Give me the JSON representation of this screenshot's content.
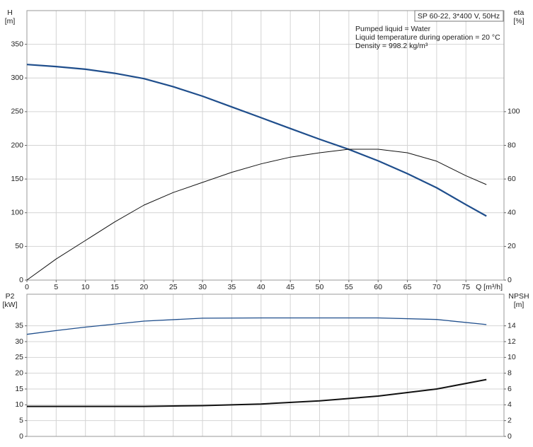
{
  "chart_data": [
    {
      "type": "line",
      "title": "SP 60-22, 3*400 V, 50Hz",
      "annotations": [
        "Pumped liquid = Water",
        "Liquid temperature during operation = 20 °C",
        "Density = 998.2 kg/m³"
      ],
      "ylabel": "H",
      "yunit": "[m]",
      "y2label": "eta",
      "y2unit": "[%]",
      "xlabel": "Q [m³/h]",
      "x": [
        0,
        5,
        10,
        15,
        20,
        25,
        30,
        35,
        40,
        45,
        50,
        55,
        60,
        65,
        70,
        75,
        78.5
      ],
      "xlim": [
        0,
        81.5
      ],
      "xticks": [
        0,
        5,
        10,
        15,
        20,
        25,
        30,
        35,
        40,
        45,
        50,
        55,
        60,
        65,
        70,
        75
      ],
      "ylim": [
        0,
        400
      ],
      "yticks": [
        0,
        50,
        100,
        150,
        200,
        250,
        300,
        350
      ],
      "y2lim": [
        0,
        160
      ],
      "y2ticks": [
        0,
        20,
        40,
        60,
        80,
        100
      ],
      "grid": true,
      "series": [
        {
          "color": "#1f4e8c",
          "values": [
            320,
            317,
            313,
            307,
            299,
            287,
            273,
            257,
            241,
            225,
            209,
            194,
            177,
            158,
            137,
            112,
            95
          ]
        },
        {
          "color": "#111111",
          "axis": "y2",
          "values": [
            0,
            12.5,
            23.5,
            34.5,
            44.5,
            52,
            58,
            64,
            69,
            73,
            75.6,
            77.7,
            77.7,
            75.6,
            70.6,
            62,
            56.7
          ]
        }
      ]
    },
    {
      "type": "line",
      "ylabel": "P2",
      "yunit": "[kW]",
      "y2label": "NPSH",
      "y2unit": "[m]",
      "x": [
        0,
        5,
        10,
        20,
        30,
        40,
        50,
        60,
        70,
        78.5
      ],
      "xlim": [
        0,
        81.5
      ],
      "ylim": [
        0,
        45
      ],
      "yticks": [
        0,
        5,
        10,
        15,
        20,
        25,
        30,
        35
      ],
      "y2lim": [
        0,
        18
      ],
      "y2ticks": [
        0,
        2,
        4,
        6,
        8,
        10,
        12,
        14
      ],
      "grid": true,
      "series": [
        {
          "color": "#1f4e8c",
          "values": [
            32.3,
            33.5,
            34.6,
            36.5,
            37.4,
            37.5,
            37.5,
            37.5,
            37.0,
            35.4
          ]
        },
        {
          "color": "#111111",
          "axis": "y2",
          "values": [
            3.8,
            3.8,
            3.8,
            3.8,
            3.9,
            4.1,
            4.5,
            5.1,
            6.0,
            7.2
          ]
        }
      ]
    }
  ]
}
